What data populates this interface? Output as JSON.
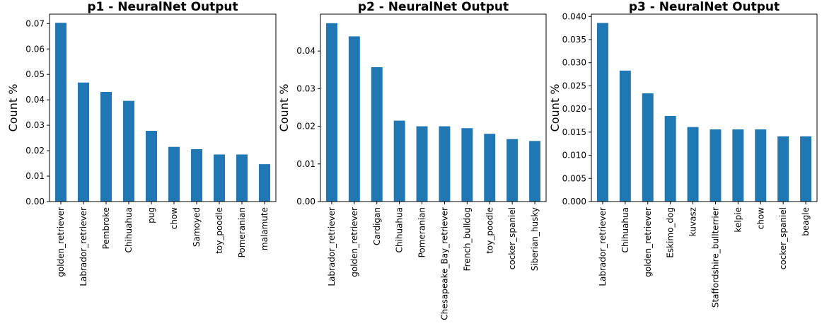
{
  "chart_data": [
    {
      "type": "bar",
      "title": "p1 - NeuralNet Output",
      "xlabel": "",
      "ylabel": "Count %",
      "categories": [
        "golden_retriever",
        "Labrador_retriever",
        "Pembroke",
        "Chihuahua",
        "pug",
        "chow",
        "Samoyed",
        "toy_poodle",
        "Pomeranian",
        "malamute"
      ],
      "values": [
        0.0703,
        0.0468,
        0.0431,
        0.0396,
        0.0278,
        0.0215,
        0.0206,
        0.0185,
        0.0185,
        0.0147
      ],
      "ylim": [
        0,
        0.0737
      ],
      "yticks": [
        "0.00",
        "0.01",
        "0.02",
        "0.03",
        "0.04",
        "0.05",
        "0.06",
        "0.07"
      ],
      "ytick_values": [
        0,
        0.01,
        0.02,
        0.03,
        0.04,
        0.05,
        0.06,
        0.07
      ],
      "color": "#1f77b4",
      "grid": false,
      "legend": "none"
    },
    {
      "type": "bar",
      "title": "p2 - NeuralNet Output",
      "xlabel": "",
      "ylabel": "Count %",
      "categories": [
        "Labrador_retriever",
        "golden_retriever",
        "Cardigan",
        "Chihuahua",
        "Pomeranian",
        "Chesapeake_Bay_retriever",
        "French_bulldog",
        "toy_poodle",
        "cocker_spaniel",
        "Siberian_husky"
      ],
      "values": [
        0.0474,
        0.0439,
        0.0357,
        0.0215,
        0.02,
        0.02,
        0.0195,
        0.018,
        0.0166,
        0.0161
      ],
      "ylim": [
        0,
        0.0498
      ],
      "yticks": [
        "0.00",
        "0.01",
        "0.02",
        "0.03",
        "0.04"
      ],
      "ytick_values": [
        0,
        0.01,
        0.02,
        0.03,
        0.04
      ],
      "color": "#1f77b4",
      "grid": false,
      "legend": "none"
    },
    {
      "type": "bar",
      "title": "p3 - NeuralNet Output",
      "xlabel": "",
      "ylabel": "Count %",
      "categories": [
        "Labrador_retriever",
        "Chihuahua",
        "golden_retriever",
        "Eskimo_dog",
        "kuvasz",
        "Staffordshire_bullterrier",
        "kelpie",
        "chow",
        "cocker_spaniel",
        "beagle"
      ],
      "values": [
        0.0386,
        0.0283,
        0.0234,
        0.0185,
        0.0161,
        0.0156,
        0.0156,
        0.0156,
        0.0141,
        0.0141
      ],
      "ylim": [
        0,
        0.0405
      ],
      "yticks": [
        "0.000",
        "0.005",
        "0.010",
        "0.015",
        "0.020",
        "0.025",
        "0.030",
        "0.035",
        "0.040"
      ],
      "ytick_values": [
        0,
        0.005,
        0.01,
        0.015,
        0.02,
        0.025,
        0.03,
        0.035,
        0.04
      ],
      "color": "#1f77b4",
      "grid": false,
      "legend": "none"
    }
  ]
}
